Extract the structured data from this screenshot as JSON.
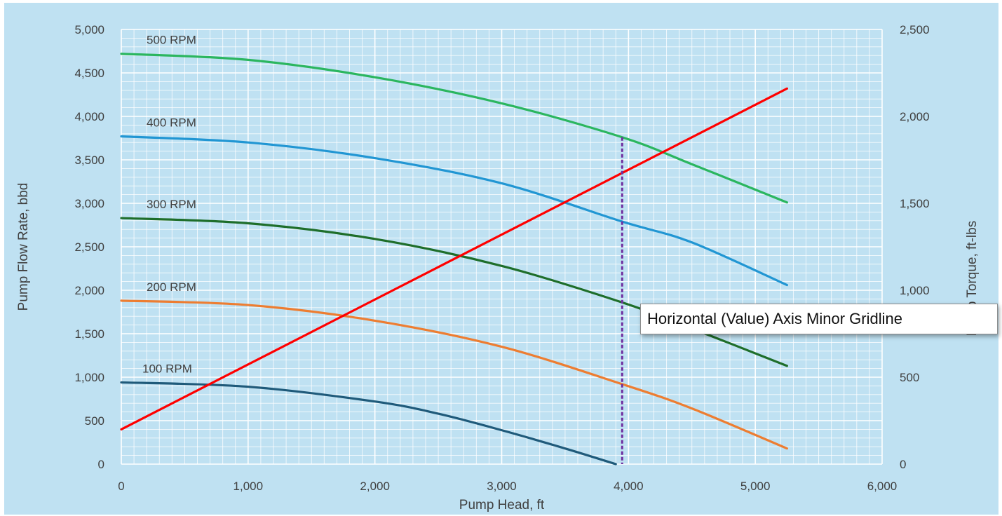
{
  "colors": {
    "background": "#bfe1f2",
    "gridline": "#ffffff",
    "hover_line": "#7030a0",
    "tick_text": "#404040"
  },
  "tooltip": {
    "text": "Horizontal (Value) Axis Minor Gridline"
  },
  "chart_data": {
    "type": "line",
    "xlabel": "Pump Head, ft",
    "ylabel": "Pump Flow Rate, bbd",
    "y2label": "Pump Torque, ft-lbs",
    "xlim": [
      0,
      6000
    ],
    "ylim": [
      0,
      5000
    ],
    "y2lim": [
      0,
      2500
    ],
    "xticks": [
      "0",
      "1,000",
      "2,000",
      "3,000",
      "4,000",
      "5,000",
      "6,000"
    ],
    "yticks": [
      "0",
      "500",
      "1,000",
      "1,500",
      "2,000",
      "2,500",
      "3,000",
      "3,500",
      "4,000",
      "4,500",
      "5,000"
    ],
    "y2ticks": [
      "0",
      "500",
      "1,000",
      "1,500",
      "2,000",
      "2,500"
    ],
    "grid": true,
    "series": [
      {
        "name": "500 RPM",
        "color": "#2bb65f",
        "axis": "left",
        "x": [
          0,
          1000,
          2000,
          3000,
          3950,
          4500,
          5250
        ],
        "y": [
          4720,
          4650,
          4450,
          4150,
          3760,
          3450,
          3010
        ]
      },
      {
        "name": "400 RPM",
        "color": "#2196d3",
        "axis": "left",
        "x": [
          0,
          1000,
          2000,
          3000,
          3950,
          4500,
          5250
        ],
        "y": [
          3770,
          3700,
          3520,
          3230,
          2790,
          2550,
          2060
        ]
      },
      {
        "name": "300 RPM",
        "color": "#1e6e2a",
        "axis": "left",
        "x": [
          0,
          1000,
          2000,
          3000,
          3950,
          4500,
          5250
        ],
        "y": [
          2830,
          2770,
          2590,
          2280,
          1860,
          1560,
          1130
        ]
      },
      {
        "name": "200 RPM",
        "color": "#ed7d31",
        "axis": "left",
        "x": [
          0,
          1000,
          2000,
          3000,
          3950,
          4500,
          5250
        ],
        "y": [
          1880,
          1830,
          1650,
          1350,
          920,
          640,
          180
        ]
      },
      {
        "name": "100 RPM",
        "color": "#1f5a7a",
        "axis": "left",
        "x": [
          0,
          1000,
          2000,
          2500,
          3000,
          3500,
          3900
        ],
        "y": [
          940,
          890,
          720,
          580,
          390,
          180,
          0
        ]
      },
      {
        "name": "",
        "color": "#ff0000",
        "axis": "right",
        "x": [
          0,
          5250
        ],
        "y": [
          200,
          2160
        ]
      }
    ]
  }
}
